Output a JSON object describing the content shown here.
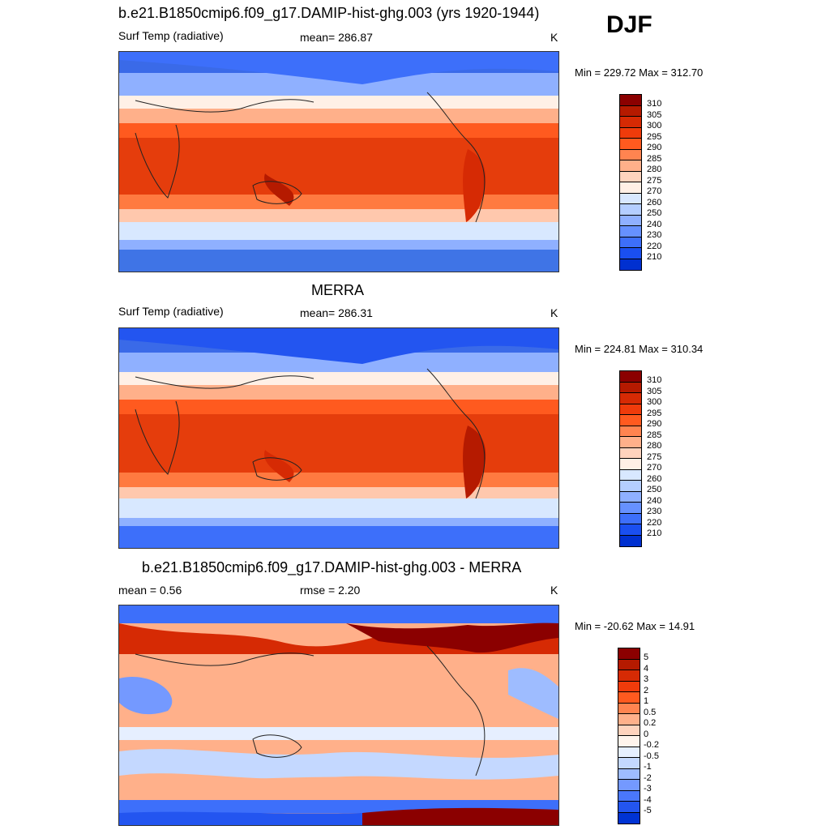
{
  "season": "DJF",
  "panels": [
    {
      "id": "model",
      "title": "b.e21.B1850cmip6.f09_g17.DAMIP-hist-ghg.003 (yrs 1920-1944)",
      "left_label": "Surf Temp (radiative)",
      "center_label": "mean= 286.87",
      "units": "K",
      "minmax": "Min = 229.72 Max = 312.70",
      "colorbar_labels": [
        "310",
        "305",
        "300",
        "295",
        "290",
        "285",
        "280",
        "275",
        "270",
        "260",
        "250",
        "240",
        "230",
        "220",
        "210"
      ],
      "colors": [
        "#8b0000",
        "#b51a00",
        "#d62a04",
        "#ef3b0b",
        "#ff5a1f",
        "#ff8450",
        "#ffb08a",
        "#ffd3bd",
        "#fff0e6",
        "#d8e8ff",
        "#b4ceff",
        "#8fb0ff",
        "#6691ff",
        "#3d6ffa",
        "#1a4ff0",
        "#0030d0",
        "#001aa8",
        "#00007f"
      ]
    },
    {
      "id": "obs",
      "title": "MERRA",
      "left_label": "Surf Temp (radiative)",
      "center_label": "mean= 286.31",
      "units": "K",
      "minmax": "Min = 224.81 Max = 310.34",
      "colorbar_labels": [
        "310",
        "305",
        "300",
        "295",
        "290",
        "285",
        "280",
        "275",
        "270",
        "260",
        "250",
        "240",
        "230",
        "220",
        "210"
      ],
      "colors": [
        "#8b0000",
        "#b51a00",
        "#d62a04",
        "#ef3b0b",
        "#ff5a1f",
        "#ff8450",
        "#ffb08a",
        "#ffd3bd",
        "#fff0e6",
        "#d8e8ff",
        "#b4ceff",
        "#8fb0ff",
        "#6691ff",
        "#3d6ffa",
        "#1a4ff0",
        "#0030d0",
        "#001aa8",
        "#00007f"
      ]
    },
    {
      "id": "diff",
      "title": "b.e21.B1850cmip6.f09_g17.DAMIP-hist-ghg.003 - MERRA",
      "left_label": "mean =   0.56",
      "center_label": "rmse =   2.20",
      "units": "K",
      "minmax": "Min = -20.62 Max =  14.91",
      "colorbar_labels": [
        "5",
        "4",
        "3",
        "2",
        "1",
        "0.5",
        "0.2",
        "0",
        "-0.2",
        "-0.5",
        "-1",
        "-2",
        "-3",
        "-4",
        "-5"
      ],
      "colors": [
        "#8b0000",
        "#b51a00",
        "#d62a04",
        "#ef3b0b",
        "#ff5a1f",
        "#ff8450",
        "#ffb08a",
        "#ffd3bd",
        "#fff4ec",
        "#e6efff",
        "#c4d8ff",
        "#9ebcff",
        "#7499ff",
        "#4a77fb",
        "#2355f0",
        "#0033d4",
        "#001aa8",
        "#00007f"
      ]
    }
  ],
  "chart_data": [
    {
      "type": "heatmap",
      "title": "b.e21.B1850cmip6.f09_g17.DAMIP-hist-ghg.003 (yrs 1920-1944)",
      "variable": "Surf Temp (radiative)",
      "units": "K",
      "mean": 286.87,
      "min": 229.72,
      "max": 312.7,
      "contour_levels": [
        210,
        220,
        230,
        240,
        250,
        260,
        270,
        275,
        280,
        285,
        290,
        295,
        300,
        305,
        310
      ]
    },
    {
      "type": "heatmap",
      "title": "MERRA",
      "variable": "Surf Temp (radiative)",
      "units": "K",
      "mean": 286.31,
      "min": 224.81,
      "max": 310.34,
      "contour_levels": [
        210,
        220,
        230,
        240,
        250,
        260,
        270,
        275,
        280,
        285,
        290,
        295,
        300,
        305,
        310
      ]
    },
    {
      "type": "heatmap",
      "title": "b.e21.B1850cmip6.f09_g17.DAMIP-hist-ghg.003 - MERRA",
      "units": "K",
      "mean": 0.56,
      "rmse": 2.2,
      "min": -20.62,
      "max": 14.91,
      "contour_levels": [
        -5,
        -4,
        -3,
        -2,
        -1,
        -0.5,
        -0.2,
        0,
        0.2,
        0.5,
        1,
        2,
        3,
        4,
        5
      ]
    }
  ]
}
